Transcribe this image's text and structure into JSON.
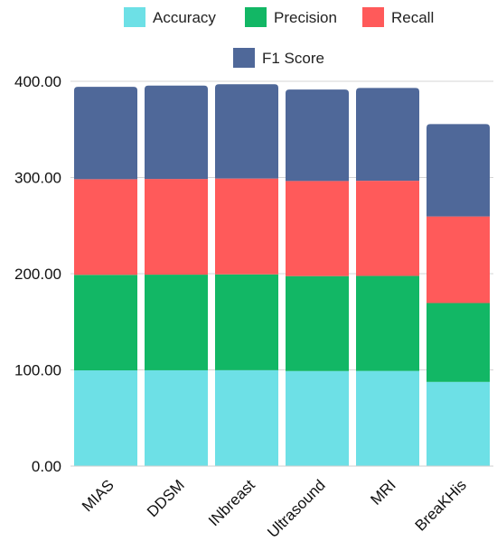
{
  "chart_data": {
    "type": "bar",
    "stacked": true,
    "categories": [
      "MIAS",
      "DDSM",
      "INbreast",
      "Ultrasound",
      "MRI",
      "BreaKHis"
    ],
    "series": [
      {
        "name": "Accuracy",
        "color": "#6de0e6",
        "values": [
          99.5,
          99.6,
          99.7,
          98.8,
          98.9,
          87.5
        ]
      },
      {
        "name": "Precision",
        "color": "#12b765",
        "values": [
          99.3,
          99.4,
          99.6,
          98.7,
          98.8,
          82.0
        ]
      },
      {
        "name": "Recall",
        "color": "#ff5a5a",
        "values": [
          99.4,
          99.5,
          99.6,
          98.9,
          98.9,
          90.0
        ]
      },
      {
        "name": "F1 Score",
        "color": "#4f6899",
        "values": [
          96.0,
          97.0,
          98.0,
          95.0,
          96.5,
          96.0
        ]
      }
    ],
    "ylim": [
      0,
      400
    ],
    "yticks": [
      "0.00",
      "100.00",
      "200.00",
      "300.00",
      "400.00"
    ],
    "grid": true,
    "legend": "top"
  }
}
